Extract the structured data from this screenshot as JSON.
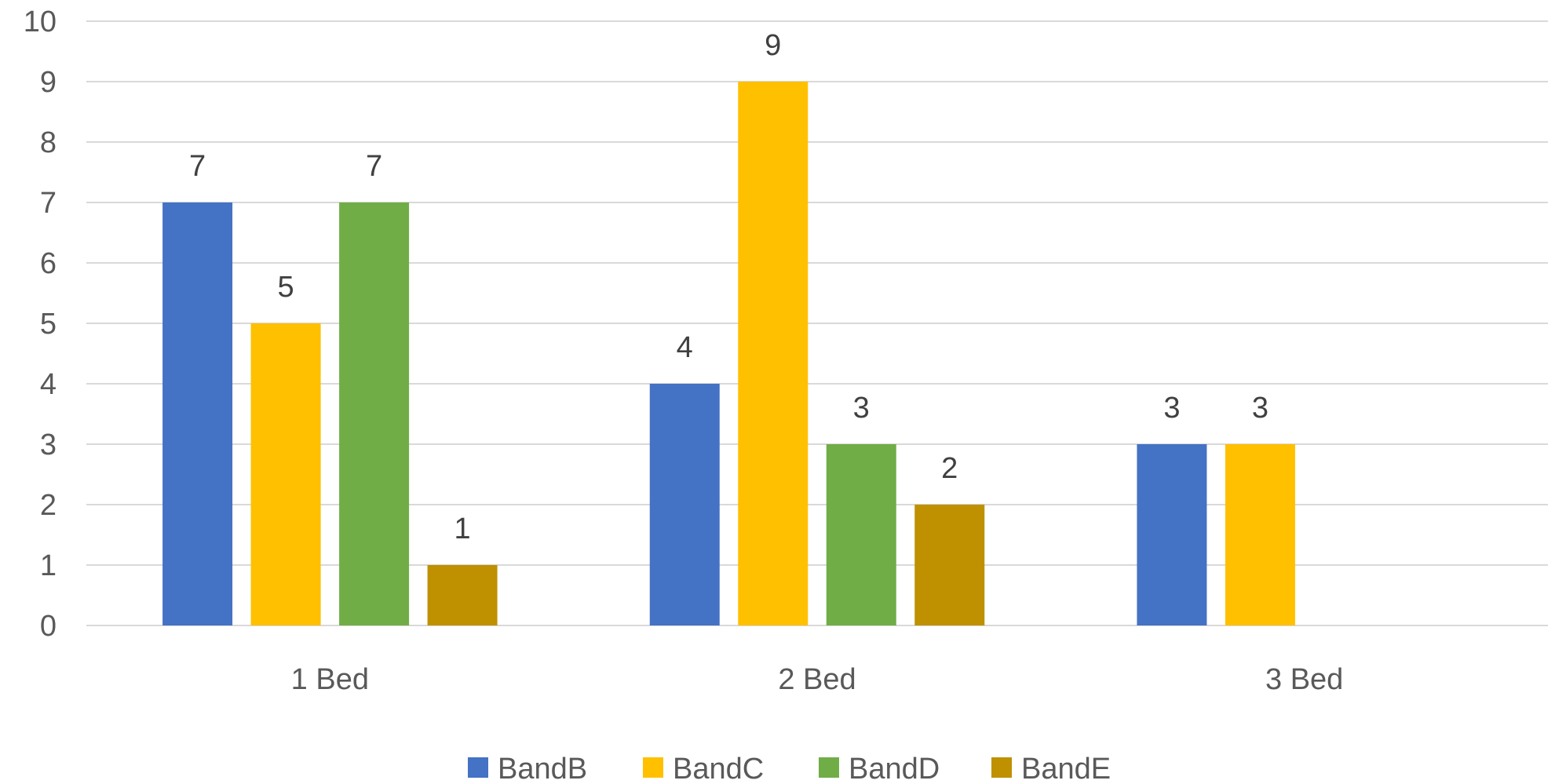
{
  "chart_data": {
    "type": "bar",
    "title": "",
    "xlabel": "",
    "ylabel": "",
    "categories": [
      "1 Bed",
      "2 Bed",
      "3 Bed"
    ],
    "ylim": [
      0,
      10
    ],
    "yticks": [
      "0",
      "1",
      "2",
      "3",
      "4",
      "5",
      "6",
      "7",
      "8",
      "9",
      "10"
    ],
    "grid": true,
    "legend_position": "bottom",
    "series": [
      {
        "name": "BandB",
        "color": "#4472C4",
        "values": [
          7,
          4,
          3
        ]
      },
      {
        "name": "BandC",
        "color": "#FFC000",
        "values": [
          5,
          9,
          3
        ]
      },
      {
        "name": "BandD",
        "color": "#70AD47",
        "values": [
          7,
          3,
          null
        ]
      },
      {
        "name": "BandE",
        "color": "#BF9000",
        "values": [
          1,
          2,
          null
        ]
      }
    ]
  }
}
